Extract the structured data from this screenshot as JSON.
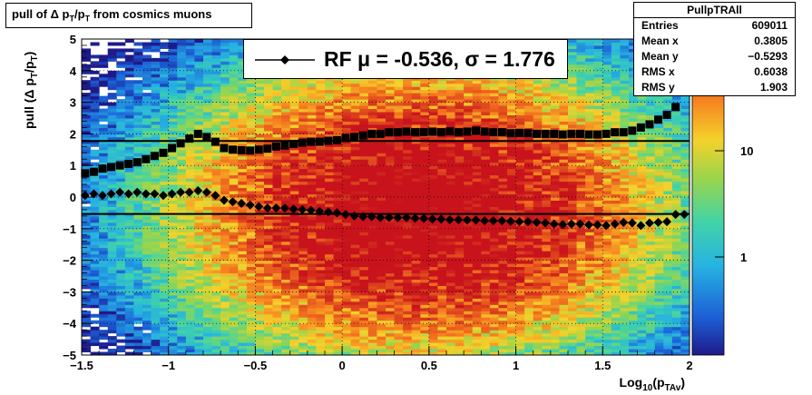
{
  "title": "pull of Δ pᵀ/pᵀ from cosmics muons",
  "title_parts": {
    "main": "pull of Δ p",
    "sub1": "T",
    "mid": "/p",
    "sub2": "T",
    "tail": " from cosmics muons"
  },
  "stats": {
    "name": "PullpTRAll",
    "rows": [
      {
        "label": "Entries",
        "value": "609011"
      },
      {
        "label": "Mean x",
        "value": "0.3805"
      },
      {
        "label": "Mean y",
        "value": "−0.5293"
      },
      {
        "label": "RMS x",
        "value": "0.6038"
      },
      {
        "label": "RMS y",
        "value": "1.903"
      }
    ]
  },
  "legend": {
    "text": "RF μ = -0.536, σ =   1.776"
  },
  "axes_text": {
    "x_main": "Log",
    "x_sub1": "10",
    "x_mid": "(p",
    "x_sub2": "TAv",
    "x_end": ")",
    "y_main": "pull (Δ p",
    "y_sub1": "T",
    "y_mid": "/p",
    "y_sub2": "T",
    "y_end": ")"
  },
  "colors": {
    "marker": "#000000",
    "line": "#000000"
  },
  "chart_data": {
    "type": "heatmap",
    "xlim": [
      -1.5,
      2
    ],
    "ylim": [
      -5,
      5
    ],
    "x_ticks": [
      -1.5,
      -1,
      -0.5,
      0,
      0.5,
      1,
      1.5,
      2
    ],
    "x_tick_labels": [
      "−1.5",
      "−1",
      "−0.5",
      "0",
      "0.5",
      "1",
      "1.5",
      "2"
    ],
    "y_ticks": [
      -5,
      -4,
      -3,
      -2,
      -1,
      0,
      1,
      2,
      3,
      4,
      5
    ],
    "y_tick_labels": [
      "−5",
      "−4",
      "−3",
      "−2",
      "−1",
      "0",
      "1",
      "2",
      "3",
      "4",
      "5"
    ],
    "z_scale": "log",
    "z_tick_labels": [
      "1",
      "10"
    ],
    "grid": true,
    "hlines": [
      1.776,
      -0.536
    ],
    "series": [
      {
        "marker": "square",
        "x": [
          -1.48,
          -1.43,
          -1.38,
          -1.33,
          -1.28,
          -1.23,
          -1.18,
          -1.13,
          -1.08,
          -1.03,
          -0.98,
          -0.93,
          -0.88,
          -0.83,
          -0.78,
          -0.73,
          -0.68,
          -0.63,
          -0.58,
          -0.53,
          -0.48,
          -0.43,
          -0.38,
          -0.33,
          -0.28,
          -0.23,
          -0.18,
          -0.13,
          -0.08,
          -0.03,
          0.02,
          0.07,
          0.12,
          0.17,
          0.22,
          0.27,
          0.32,
          0.37,
          0.42,
          0.47,
          0.52,
          0.57,
          0.62,
          0.67,
          0.72,
          0.77,
          0.82,
          0.87,
          0.92,
          0.97,
          1.02,
          1.07,
          1.12,
          1.17,
          1.22,
          1.27,
          1.32,
          1.37,
          1.42,
          1.47,
          1.52,
          1.57,
          1.62,
          1.67,
          1.72,
          1.77,
          1.82,
          1.87,
          1.92,
          1.97
        ],
        "y": [
          0.75,
          0.8,
          0.9,
          0.95,
          1.0,
          1.05,
          1.1,
          1.2,
          1.3,
          1.4,
          1.55,
          1.7,
          1.85,
          2.0,
          1.9,
          1.75,
          1.55,
          1.5,
          1.48,
          1.47,
          1.5,
          1.53,
          1.6,
          1.63,
          1.68,
          1.72,
          1.75,
          1.75,
          1.78,
          1.8,
          1.87,
          1.9,
          1.95,
          2.0,
          2.0,
          2.05,
          2.05,
          2.07,
          2.05,
          2.05,
          2.07,
          2.05,
          2.08,
          2.05,
          2.07,
          2.1,
          2.07,
          2.05,
          2.05,
          2.02,
          2.03,
          2.02,
          2.0,
          2.0,
          2.0,
          1.98,
          2.0,
          2.0,
          1.98,
          1.98,
          2.0,
          2.05,
          2.05,
          2.1,
          2.2,
          2.3,
          2.45,
          2.6,
          2.85,
          3.6
        ]
      },
      {
        "marker": "diamond",
        "x": [
          -1.48,
          -1.43,
          -1.38,
          -1.33,
          -1.28,
          -1.23,
          -1.18,
          -1.13,
          -1.08,
          -1.03,
          -0.98,
          -0.93,
          -0.88,
          -0.83,
          -0.78,
          -0.73,
          -0.68,
          -0.63,
          -0.58,
          -0.53,
          -0.48,
          -0.43,
          -0.38,
          -0.33,
          -0.28,
          -0.23,
          -0.18,
          -0.13,
          -0.08,
          -0.03,
          0.02,
          0.07,
          0.12,
          0.17,
          0.22,
          0.27,
          0.32,
          0.37,
          0.42,
          0.47,
          0.52,
          0.57,
          0.62,
          0.67,
          0.72,
          0.77,
          0.82,
          0.87,
          0.92,
          0.97,
          1.02,
          1.07,
          1.12,
          1.17,
          1.22,
          1.27,
          1.32,
          1.37,
          1.42,
          1.47,
          1.52,
          1.57,
          1.62,
          1.67,
          1.72,
          1.77,
          1.82,
          1.87,
          1.92,
          1.97
        ],
        "y": [
          0.05,
          0.1,
          0.05,
          0.1,
          0.15,
          0.1,
          0.15,
          0.1,
          0.1,
          0.05,
          0.1,
          0.15,
          0.15,
          0.2,
          0.15,
          0.05,
          -0.1,
          -0.15,
          -0.2,
          -0.25,
          -0.3,
          -0.35,
          -0.35,
          -0.35,
          -0.38,
          -0.4,
          -0.42,
          -0.45,
          -0.47,
          -0.5,
          -0.55,
          -0.6,
          -0.62,
          -0.62,
          -0.65,
          -0.65,
          -0.65,
          -0.65,
          -0.67,
          -0.68,
          -0.7,
          -0.7,
          -0.72,
          -0.72,
          -0.73,
          -0.73,
          -0.75,
          -0.75,
          -0.75,
          -0.77,
          -0.78,
          -0.78,
          -0.8,
          -0.82,
          -0.85,
          -0.87,
          -0.85,
          -0.85,
          -0.88,
          -0.88,
          -0.9,
          -0.85,
          -0.8,
          -0.82,
          -0.9,
          -0.82,
          -0.8,
          -0.78,
          -0.55,
          -0.55
        ]
      }
    ]
  }
}
